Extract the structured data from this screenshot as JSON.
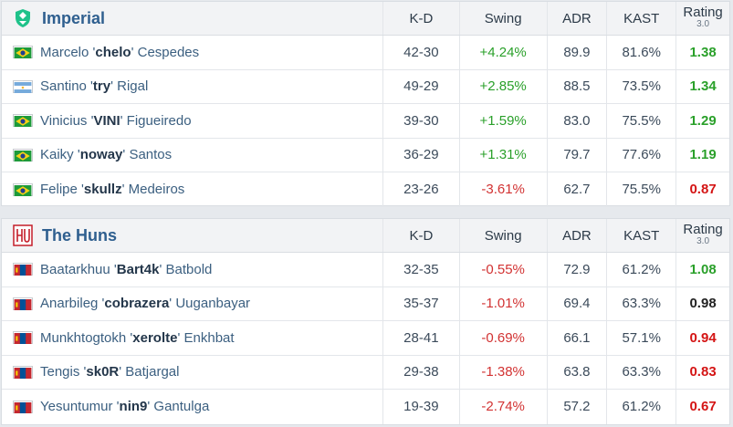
{
  "headers": {
    "kd": "K-D",
    "swing": "Swing",
    "adr": "ADR",
    "kast": "KAST",
    "rating": "Rating",
    "rating_ver": "3.0"
  },
  "teams": [
    {
      "name": "Imperial",
      "logo_icon": "imperial-logo-icon",
      "players": [
        {
          "flag": "brazil-flag-icon",
          "first": "Marcelo '",
          "nick": "chelo",
          "last": "' Cespedes",
          "kd": "42-30",
          "swing": "+4.24%",
          "adr": "89.9",
          "kast": "81.6%",
          "rating": "1.38"
        },
        {
          "flag": "argentina-flag-icon",
          "first": "Santino '",
          "nick": "try",
          "last": "' Rigal",
          "kd": "49-29",
          "swing": "+2.85%",
          "adr": "88.5",
          "kast": "73.5%",
          "rating": "1.34"
        },
        {
          "flag": "brazil-flag-icon",
          "first": "Vinicius '",
          "nick": "VINI",
          "last": "' Figueiredo",
          "kd": "39-30",
          "swing": "+1.59%",
          "adr": "83.0",
          "kast": "75.5%",
          "rating": "1.29"
        },
        {
          "flag": "brazil-flag-icon",
          "first": "Kaiky '",
          "nick": "noway",
          "last": "' Santos",
          "kd": "36-29",
          "swing": "+1.31%",
          "adr": "79.7",
          "kast": "77.6%",
          "rating": "1.19"
        },
        {
          "flag": "brazil-flag-icon",
          "first": "Felipe '",
          "nick": "skullz",
          "last": "' Medeiros",
          "kd": "23-26",
          "swing": "-3.61%",
          "adr": "62.7",
          "kast": "75.5%",
          "rating": "0.87"
        }
      ]
    },
    {
      "name": "The Huns",
      "logo_icon": "the-huns-logo-icon",
      "players": [
        {
          "flag": "mongolia-flag-icon",
          "first": "Baatarkhuu '",
          "nick": "Bart4k",
          "last": "' Batbold",
          "kd": "32-35",
          "swing": "-0.55%",
          "adr": "72.9",
          "kast": "61.2%",
          "rating": "1.08"
        },
        {
          "flag": "mongolia-flag-icon",
          "first": "Anarbileg '",
          "nick": "cobrazera",
          "last": "' Uuganbayar",
          "kd": "35-37",
          "swing": "-1.01%",
          "adr": "69.4",
          "kast": "63.3%",
          "rating": "0.98"
        },
        {
          "flag": "mongolia-flag-icon",
          "first": "Munkhtogtokh '",
          "nick": "xerolte",
          "last": "' Enkhbat",
          "kd": "28-41",
          "swing": "-0.69%",
          "adr": "66.1",
          "kast": "57.1%",
          "rating": "0.94"
        },
        {
          "flag": "mongolia-flag-icon",
          "first": "Tengis '",
          "nick": "sk0R",
          "last": "' Batjargal",
          "kd": "29-38",
          "swing": "-1.38%",
          "adr": "63.8",
          "kast": "63.3%",
          "rating": "0.83"
        },
        {
          "flag": "mongolia-flag-icon",
          "first": "Yesuntumur '",
          "nick": "nin9",
          "last": "' Gantulga",
          "kd": "19-39",
          "swing": "-2.74%",
          "adr": "57.2",
          "kast": "61.2%",
          "rating": "0.67"
        }
      ]
    }
  ],
  "colors": {
    "positive": "#2aa02a",
    "negative": "#d23232",
    "rating_good": "#2aa02a",
    "rating_neutral": "#222222",
    "rating_bad": "#d41414",
    "team_name": "#2f5f8f"
  }
}
